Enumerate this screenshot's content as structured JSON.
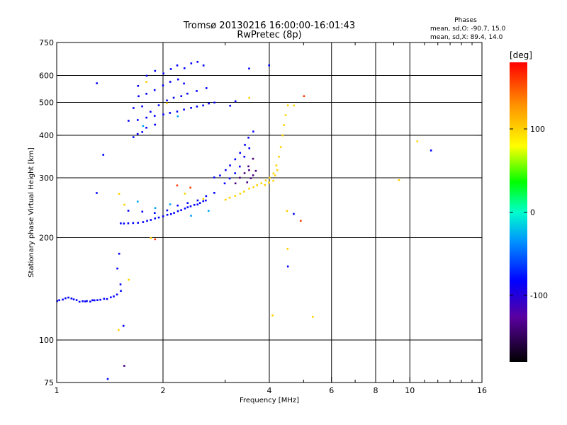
{
  "chart_data": {
    "type": "scatter",
    "title": "Tromsø 20130216 16:00:00-16:01:43",
    "subtitle": "RwPretec (8p)",
    "xlabel": "Frequency [MHz]",
    "ylabel": "Stationary phase Virtual Height [km]",
    "xscale": "log2",
    "yscale": "log",
    "xlim": [
      1,
      16
    ],
    "ylim": [
      75,
      750
    ],
    "x_ticks": [
      1,
      2,
      4,
      6,
      8,
      10,
      16
    ],
    "x_grid": [
      1,
      2,
      4,
      6,
      8,
      10,
      16
    ],
    "y_ticks": [
      75,
      100,
      200,
      300,
      400,
      500,
      600,
      750
    ],
    "y_grid": [
      100,
      200,
      300,
      400,
      500,
      600
    ],
    "grid": true,
    "stats": {
      "heading": "Phases",
      "o_line": "mean, sd,O: -90.7, 15.0",
      "x_line": "mean, sd,X:  89.4, 14.0"
    },
    "colorbar": {
      "label": "[deg]",
      "range": [
        -180,
        180
      ],
      "ticks": [
        100,
        0,
        -100
      ],
      "placement": "right"
    },
    "series": [
      {
        "phase": -100,
        "points": [
          [
            1.0,
            130
          ],
          [
            1.02,
            131
          ],
          [
            1.04,
            132
          ],
          [
            1.06,
            133
          ],
          [
            1.08,
            133
          ],
          [
            1.1,
            133
          ],
          [
            1.12,
            132
          ],
          [
            1.14,
            131
          ],
          [
            1.16,
            130
          ],
          [
            1.18,
            130
          ],
          [
            1.2,
            130
          ],
          [
            1.22,
            130
          ],
          [
            1.24,
            130
          ],
          [
            1.26,
            131
          ],
          [
            1.28,
            131
          ],
          [
            1.3,
            131
          ],
          [
            1.33,
            131
          ],
          [
            1.36,
            132
          ],
          [
            1.39,
            132
          ],
          [
            1.42,
            133
          ],
          [
            1.45,
            134
          ],
          [
            1.48,
            136
          ],
          [
            1.52,
            140
          ],
          [
            1.52,
            146
          ],
          [
            1.52,
            220
          ],
          [
            1.55,
            220
          ],
          [
            1.6,
            220
          ],
          [
            1.65,
            221
          ],
          [
            1.7,
            222
          ],
          [
            1.75,
            223
          ],
          [
            1.8,
            224
          ],
          [
            1.85,
            226
          ],
          [
            1.9,
            228
          ],
          [
            1.95,
            230
          ],
          [
            2.0,
            231
          ],
          [
            2.05,
            233
          ],
          [
            2.1,
            235
          ],
          [
            2.15,
            237
          ],
          [
            2.2,
            239
          ],
          [
            2.25,
            241
          ],
          [
            2.3,
            243
          ],
          [
            2.35,
            245
          ],
          [
            2.4,
            247
          ],
          [
            2.45,
            249
          ],
          [
            2.5,
            251
          ],
          [
            2.55,
            253
          ],
          [
            2.6,
            256
          ],
          [
            2.65,
            258
          ],
          [
            1.6,
            240
          ],
          [
            1.75,
            238
          ],
          [
            1.9,
            236
          ],
          [
            2.05,
            240
          ],
          [
            2.2,
            248
          ],
          [
            2.35,
            252
          ],
          [
            2.5,
            258
          ],
          [
            2.65,
            264
          ],
          [
            2.8,
            270
          ],
          [
            1.6,
            440
          ],
          [
            1.7,
            444
          ],
          [
            1.8,
            450
          ],
          [
            1.9,
            456
          ],
          [
            2.0,
            460
          ],
          [
            2.1,
            465
          ],
          [
            2.2,
            470
          ],
          [
            2.3,
            475
          ],
          [
            2.4,
            480
          ],
          [
            2.5,
            485
          ],
          [
            2.6,
            490
          ],
          [
            2.7,
            495
          ],
          [
            2.8,
            500
          ],
          [
            1.65,
            480
          ],
          [
            1.75,
            485
          ],
          [
            1.85,
            470
          ],
          [
            1.95,
            490
          ],
          [
            2.05,
            505
          ],
          [
            2.15,
            515
          ],
          [
            2.25,
            520
          ],
          [
            2.35,
            530
          ],
          [
            2.5,
            540
          ],
          [
            2.65,
            550
          ],
          [
            1.65,
            395
          ],
          [
            1.7,
            405
          ],
          [
            1.75,
            410
          ],
          [
            1.8,
            420
          ],
          [
            1.9,
            430
          ],
          [
            1.7,
            560
          ],
          [
            1.8,
            600
          ],
          [
            1.9,
            620
          ],
          [
            2.0,
            610
          ],
          [
            2.1,
            625
          ],
          [
            2.2,
            640
          ],
          [
            2.3,
            630
          ],
          [
            2.4,
            650
          ],
          [
            2.5,
            660
          ],
          [
            2.6,
            640
          ],
          [
            1.7,
            520
          ],
          [
            1.8,
            530
          ],
          [
            1.9,
            545
          ],
          [
            2.0,
            560
          ],
          [
            2.1,
            575
          ],
          [
            2.2,
            585
          ],
          [
            2.3,
            570
          ],
          [
            2.8,
            300
          ],
          [
            2.9,
            305
          ],
          [
            3.0,
            315
          ],
          [
            3.1,
            325
          ],
          [
            3.2,
            340
          ],
          [
            3.3,
            355
          ],
          [
            3.4,
            375
          ],
          [
            3.5,
            395
          ],
          [
            3.6,
            410
          ],
          [
            3.0,
            290
          ],
          [
            3.1,
            298
          ],
          [
            3.2,
            310
          ],
          [
            3.3,
            325
          ],
          [
            3.4,
            345
          ],
          [
            3.5,
            365
          ],
          [
            1.3,
            570
          ],
          [
            1.35,
            350
          ],
          [
            1.3,
            270
          ],
          [
            1.5,
            180
          ],
          [
            1.48,
            162
          ],
          [
            1.55,
            110
          ],
          [
            1.4,
            77
          ],
          [
            3.5,
            630
          ],
          [
            4.0,
            640
          ],
          [
            4.7,
            235
          ],
          [
            4.5,
            165
          ],
          [
            11.5,
            360
          ],
          [
            3.1,
            490
          ],
          [
            3.2,
            505
          ]
        ]
      },
      {
        "phase": 100,
        "points": [
          [
            3.0,
            258
          ],
          [
            3.1,
            262
          ],
          [
            3.2,
            266
          ],
          [
            3.3,
            270
          ],
          [
            3.4,
            274
          ],
          [
            3.5,
            278
          ],
          [
            3.6,
            282
          ],
          [
            3.7,
            286
          ],
          [
            3.8,
            290
          ],
          [
            3.9,
            295
          ],
          [
            4.0,
            300
          ],
          [
            4.1,
            310
          ],
          [
            4.2,
            325
          ],
          [
            4.25,
            345
          ],
          [
            4.3,
            370
          ],
          [
            4.35,
            400
          ],
          [
            4.4,
            430
          ],
          [
            4.45,
            460
          ],
          [
            4.5,
            490
          ],
          [
            3.9,
            285
          ],
          [
            4.0,
            290
          ],
          [
            4.1,
            295
          ],
          [
            4.15,
            305
          ],
          [
            4.2,
            315
          ],
          [
            1.55,
            250
          ],
          [
            1.6,
            150
          ],
          [
            1.5,
            107
          ],
          [
            1.85,
            200
          ],
          [
            2.3,
            270
          ],
          [
            2.6,
            260
          ],
          [
            1.8,
            575
          ],
          [
            2.05,
            495
          ],
          [
            4.5,
            240
          ],
          [
            10.5,
            385
          ],
          [
            9.3,
            296
          ],
          [
            5.3,
            117
          ],
          [
            4.7,
            490
          ],
          [
            4.5,
            185
          ],
          [
            4.1,
            118
          ],
          [
            1.5,
            270
          ],
          [
            3.5,
            515
          ]
        ]
      },
      {
        "phase": -140,
        "points": [
          [
            3.2,
            290
          ],
          [
            3.3,
            300
          ],
          [
            3.4,
            310
          ],
          [
            3.5,
            325
          ],
          [
            3.6,
            340
          ],
          [
            3.45,
            290
          ],
          [
            3.55,
            300
          ],
          [
            3.65,
            315
          ],
          [
            3.6,
            305
          ],
          [
            3.5,
            315
          ],
          [
            1.55,
            84
          ]
        ]
      },
      {
        "phase": 160,
        "points": [
          [
            2.4,
            280
          ],
          [
            2.2,
            285
          ],
          [
            5.0,
            520
          ],
          [
            4.9,
            225
          ],
          [
            1.9,
            198
          ]
        ]
      },
      {
        "phase": -40,
        "points": [
          [
            1.7,
            255
          ],
          [
            1.9,
            245
          ],
          [
            2.1,
            250
          ],
          [
            2.4,
            232
          ],
          [
            2.7,
            240
          ],
          [
            1.75,
            425
          ],
          [
            2.2,
            455
          ]
        ]
      }
    ]
  }
}
